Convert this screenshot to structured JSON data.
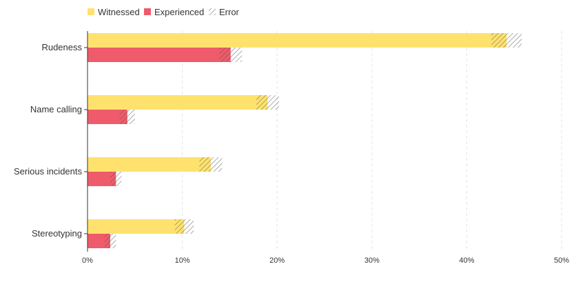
{
  "chart_data": {
    "type": "bar",
    "orientation": "horizontal",
    "categories": [
      "Rudeness",
      "Name calling",
      "Serious incidents",
      "Stereotyping"
    ],
    "series": [
      {
        "name": "Witnessed",
        "color": "#ffe26e",
        "values": [
          44.2,
          19.0,
          13.0,
          10.2
        ],
        "error": [
          1.6,
          1.2,
          1.2,
          1.0
        ]
      },
      {
        "name": "Experienced",
        "color": "#ef5b6a",
        "values": [
          15.1,
          4.2,
          3.0,
          2.4
        ],
        "error": [
          1.2,
          0.8,
          0.6,
          0.6
        ]
      }
    ],
    "error_legend": "Error",
    "x_ticks": [
      "0%",
      "10%",
      "20%",
      "30%",
      "40%",
      "50%"
    ],
    "xlim": [
      0,
      50
    ],
    "grid": "vertical dashed",
    "legend_position": "top-left"
  }
}
